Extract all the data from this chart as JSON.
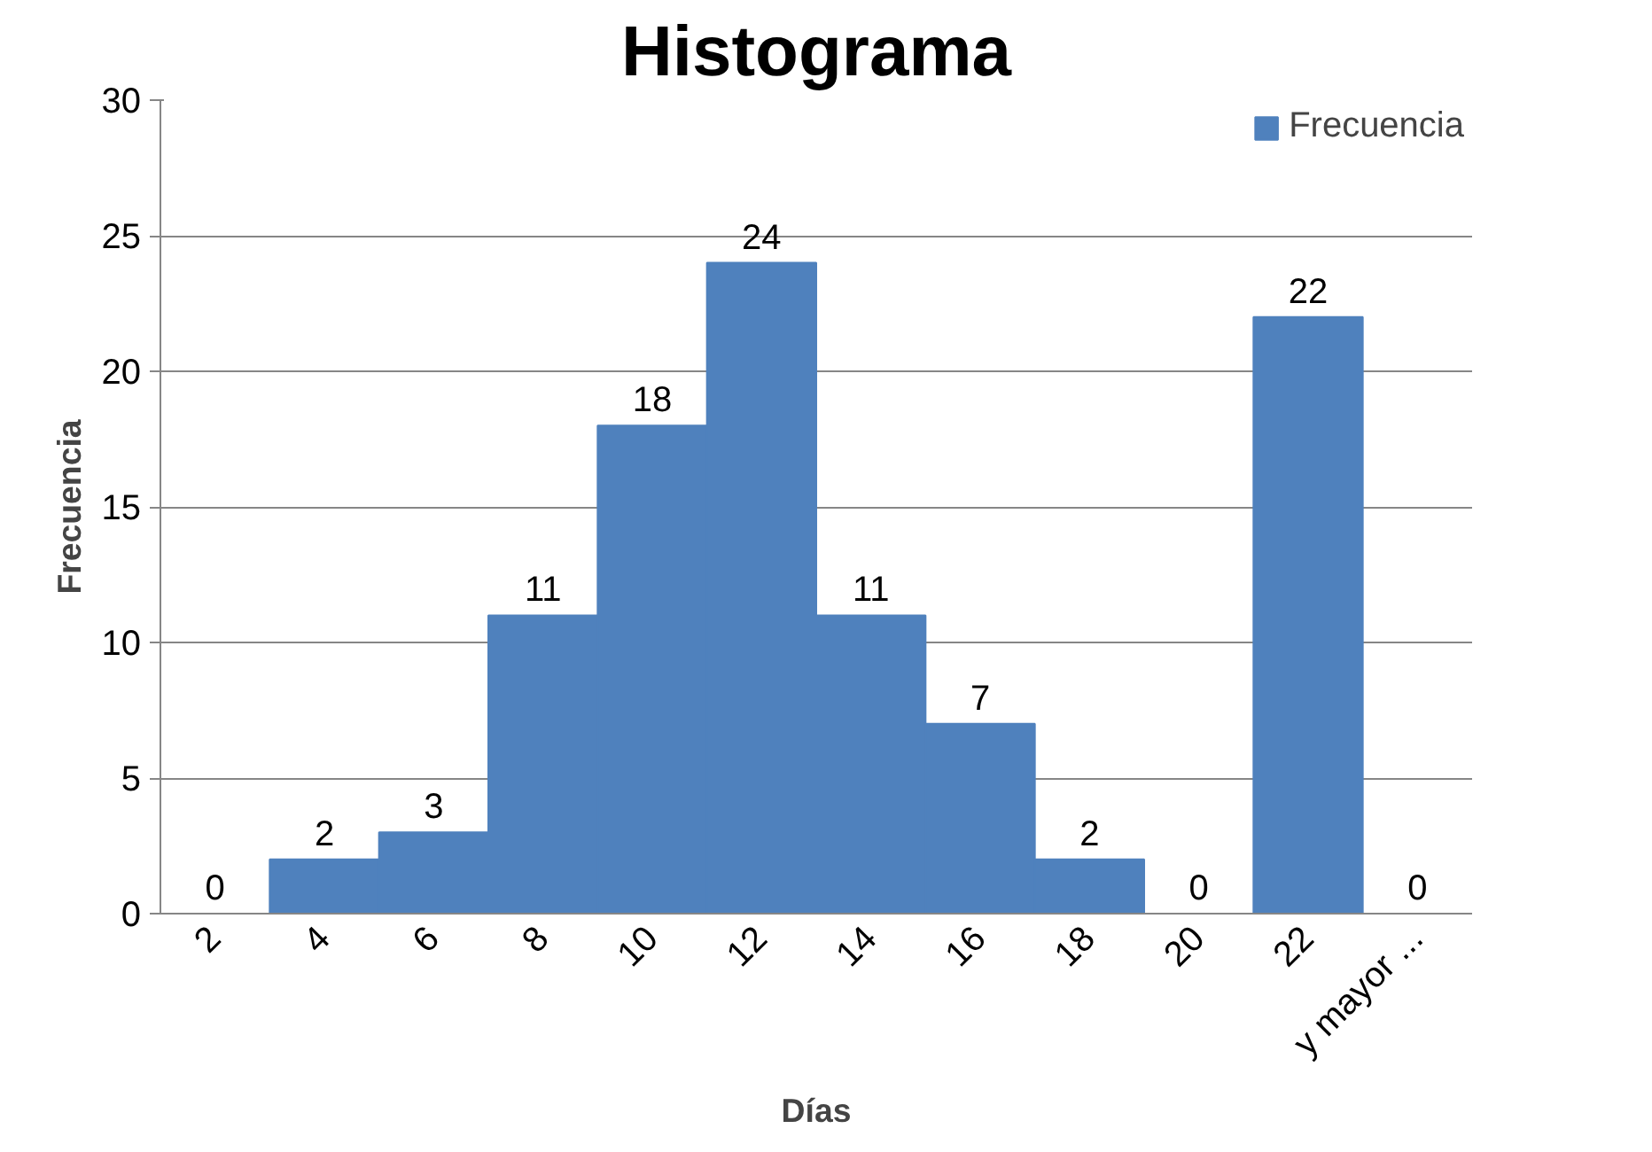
{
  "chart_data": {
    "type": "bar",
    "title": "Histograma",
    "xlabel": "Días",
    "ylabel": "Frecuencia",
    "categories": [
      "2",
      "4",
      "6",
      "8",
      "10",
      "12",
      "14",
      "16",
      "18",
      "20",
      "22",
      "y mayor ..."
    ],
    "series": [
      {
        "name": "Frecuencia",
        "color": "#4f81bd",
        "values": [
          0,
          2,
          3,
          11,
          18,
          24,
          11,
          7,
          2,
          0,
          22,
          0
        ]
      }
    ],
    "ylim": [
      0,
      30
    ],
    "yticks": [
      0,
      5,
      10,
      15,
      20,
      25,
      30
    ],
    "grid": "y",
    "legend": "top right",
    "data_labels": true
  }
}
